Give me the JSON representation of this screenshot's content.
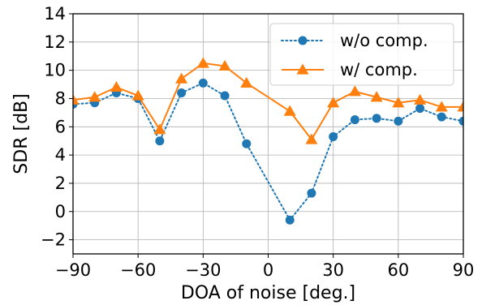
{
  "chart_data": {
    "type": "line",
    "xlabel": "DOA of noise [deg.]",
    "ylabel": "SDR [dB]",
    "xlim": [
      -90,
      90
    ],
    "ylim": [
      -3,
      14
    ],
    "xticks": [
      -90,
      -60,
      -30,
      0,
      30,
      60,
      90
    ],
    "yticks": [
      -2,
      0,
      2,
      4,
      6,
      8,
      10,
      12,
      14
    ],
    "xtick_labels": [
      "−90",
      "−60",
      "−30",
      "0",
      "30",
      "60",
      "90"
    ],
    "ytick_labels": [
      "−2",
      "0",
      "2",
      "4",
      "6",
      "8",
      "10",
      "12",
      "14"
    ],
    "grid": true,
    "legend_position": "top-right",
    "x": [
      -90,
      -80,
      -70,
      -60,
      -50,
      -40,
      -30,
      -20,
      -10,
      10,
      20,
      30,
      40,
      50,
      60,
      70,
      80,
      90
    ],
    "series": [
      {
        "name": "w/o comp.",
        "color": "#1f77b4",
        "marker": "circle",
        "linestyle": "dotted",
        "values": [
          7.6,
          7.7,
          8.4,
          8.0,
          5.0,
          8.4,
          9.1,
          8.2,
          4.8,
          -0.6,
          1.3,
          5.3,
          6.5,
          6.6,
          6.4,
          7.3,
          6.7,
          6.4
        ]
      },
      {
        "name": "w/ comp.",
        "color": "#ff7f0e",
        "marker": "triangle",
        "linestyle": "solid",
        "values": [
          7.9,
          8.1,
          8.8,
          8.2,
          5.8,
          9.4,
          10.5,
          10.3,
          9.1,
          7.1,
          5.1,
          7.7,
          8.5,
          8.1,
          7.7,
          7.9,
          7.4,
          7.4
        ]
      }
    ]
  }
}
